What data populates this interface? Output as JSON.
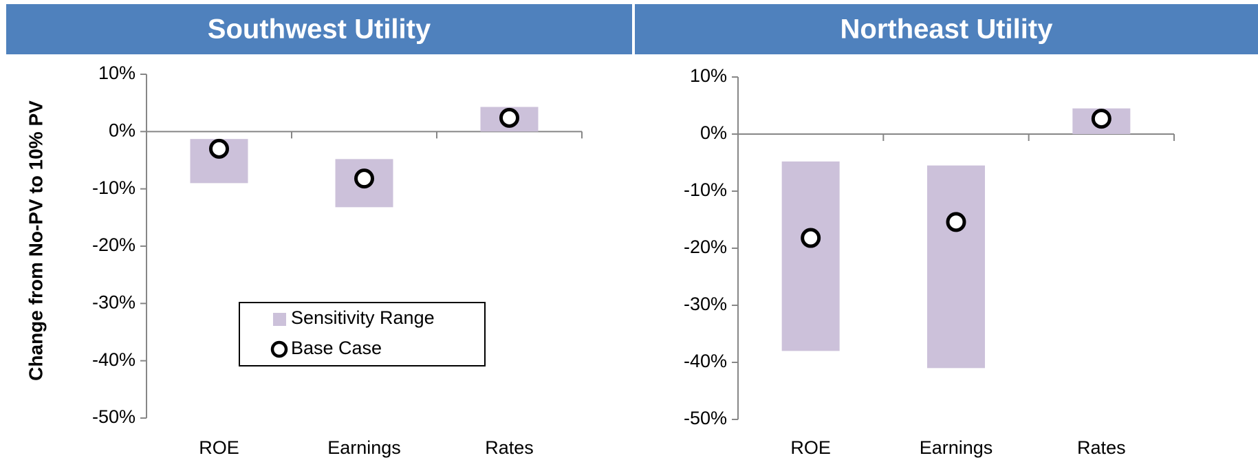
{
  "chart_data": [
    {
      "type": "range",
      "title": "Southwest Utility",
      "y_label": "Change from No-PV to 10% PV",
      "categories": [
        "ROE",
        "Earnings",
        "Rates"
      ],
      "series": [
        {
          "name": "Sensitivity Range",
          "color": "#ccc1da",
          "low": [
            -9,
            -13.2,
            0
          ],
          "high": [
            -1.3,
            -4.8,
            4.3
          ]
        },
        {
          "name": "Base Case",
          "color": "#000000",
          "values": [
            -3,
            -8.2,
            2.4
          ]
        }
      ],
      "ylim": [
        -50,
        10
      ],
      "yticks": [
        {
          "value": -50,
          "label": "-50%"
        },
        {
          "value": -40,
          "label": "-40%"
        },
        {
          "value": -30,
          "label": "-30%"
        },
        {
          "value": -20,
          "label": "-20%"
        },
        {
          "value": -10,
          "label": "-10%"
        },
        {
          "value": 0,
          "label": "0%"
        },
        {
          "value": 10,
          "label": "10%"
        }
      ],
      "legend": "inside"
    },
    {
      "type": "range",
      "title": "Northeast Utility",
      "categories": [
        "ROE",
        "Earnings",
        "Rates"
      ],
      "series": [
        {
          "color": "#ccc1da",
          "low": [
            -38,
            -41,
            0
          ],
          "high": [
            -4.8,
            -5.5,
            4.5
          ]
        },
        {
          "color": "#000000",
          "values": [
            -18.2,
            -15.4,
            2.7
          ]
        }
      ],
      "ylim": [
        -50,
        10
      ],
      "yticks": [
        {
          "value": -50,
          "label": "-50%"
        },
        {
          "value": -40,
          "label": "-40%"
        },
        {
          "value": -30,
          "label": "-30%"
        },
        {
          "value": -20,
          "label": "-20%"
        },
        {
          "value": -10,
          "label": "-10%"
        },
        {
          "value": 0,
          "label": "0%"
        },
        {
          "value": 10,
          "label": "10%"
        }
      ]
    }
  ]
}
